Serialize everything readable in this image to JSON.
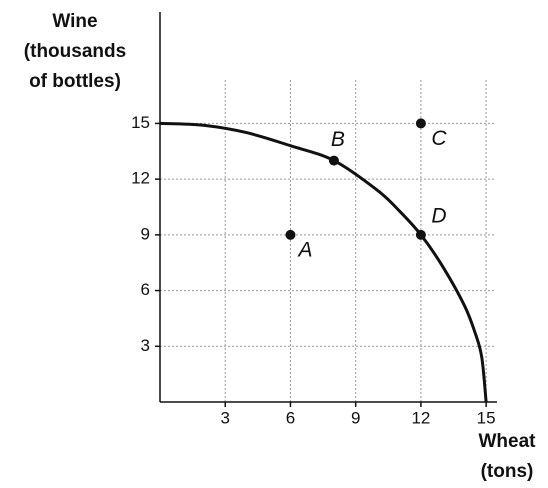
{
  "chart_data": {
    "type": "scatter",
    "ylabel": [
      "Wine",
      "(thousands",
      "of bottles)"
    ],
    "xlabel": [
      "Wheat",
      "(tons)"
    ],
    "xlim": [
      0,
      15.5
    ],
    "ylim": [
      0,
      21
    ],
    "xticks": [
      3,
      6,
      9,
      12,
      15
    ],
    "yticks": [
      3,
      6,
      9,
      12,
      15
    ],
    "grid": true,
    "curve": {
      "color": "#111111",
      "x": [
        0,
        2,
        4,
        6,
        8,
        10,
        11,
        12,
        13,
        14,
        14.5,
        14.8,
        15
      ],
      "y": [
        15,
        14.9,
        14.5,
        13.8,
        13,
        11.4,
        10.3,
        9,
        7.3,
        5.2,
        3.7,
        2.4,
        0
      ]
    },
    "points": {
      "color": "#111111",
      "labels": [
        "A",
        "B",
        "C",
        "D"
      ],
      "x": [
        6,
        8,
        12,
        12
      ],
      "y": [
        9,
        13,
        15,
        9
      ]
    }
  }
}
